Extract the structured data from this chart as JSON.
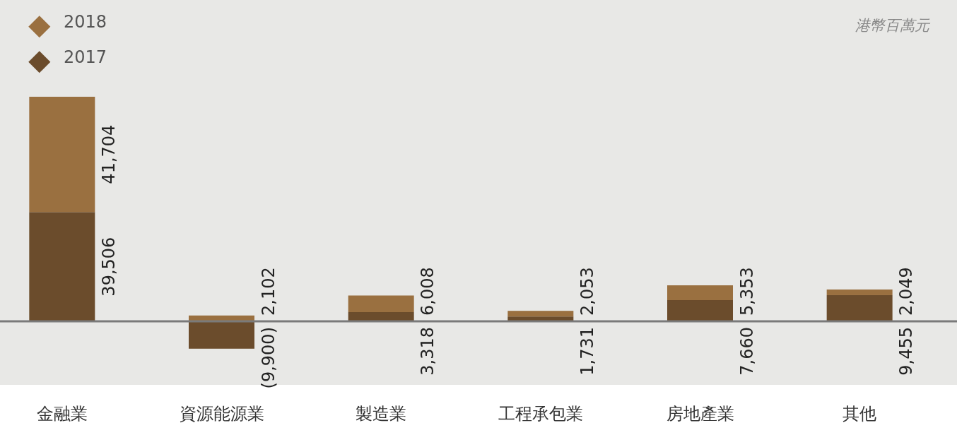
{
  "chart_data": {
    "type": "bar",
    "stacked": true,
    "categories": [
      "金融業",
      "資源能源業",
      "製造業",
      "工程承包業",
      "房地產業",
      "其他"
    ],
    "series": [
      {
        "name": "2017",
        "color": "#6b4c2c",
        "values": [
          39506,
          -9900,
          3318,
          1731,
          7660,
          9455
        ],
        "value_labels": [
          "39,506",
          "(9,900)",
          "3,318",
          "1,731",
          "7,660",
          "9,455"
        ]
      },
      {
        "name": "2018",
        "color": "#9a7040",
        "values": [
          41704,
          2102,
          6008,
          2053,
          5353,
          2049
        ],
        "value_labels": [
          "41,704",
          "2,102",
          "6,008",
          "2,053",
          "5,353",
          "2,049"
        ]
      }
    ],
    "legend": "top left",
    "annotations": [
      "港幣百萬元"
    ]
  }
}
